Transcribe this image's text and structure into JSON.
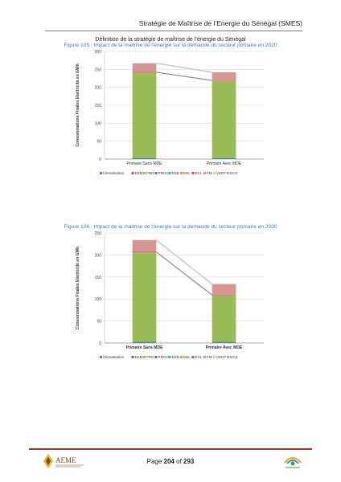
{
  "header": {
    "title": "Stratégie de Maîtrise de l’Energie du Sénégal (SMES)"
  },
  "section": {
    "title": "Définition de la stratégie de maîtrise de l’énergie du Sénégal"
  },
  "figures": [
    {
      "caption": "Figure 105 : Impact de la maitrise de l’énergie sur la demande du secteur primaire en 2020"
    },
    {
      "caption": "Figure 106 : Impact de la maitrise de l’énergie sur la demande du secteur primaire en 2030"
    }
  ],
  "chart_data": [
    {
      "type": "bar",
      "stacked": true,
      "categories": [
        "Primaire Sans MDE",
        "Primaire Avec MDE"
      ],
      "ylabel": "Consommations Finales Electricité en GWh",
      "ylim": [
        0,
        300
      ],
      "yticks": [
        0,
        50,
        100,
        150,
        200,
        250,
        300
      ],
      "grid": true,
      "legend_position": "bottom",
      "connectors": true,
      "series": [
        {
          "name": "Climatisation",
          "color": "#4f81bd",
          "values": [
            3,
            3
          ]
        },
        {
          "name": "EEM",
          "color": "#c0504d",
          "values": [
            0,
            0
          ]
        },
        {
          "name": "FRD",
          "color": "#9bbb59",
          "values": [
            239,
            216
          ]
        },
        {
          "name": "PROC",
          "color": "#8064a2",
          "values": [
            0,
            0
          ]
        },
        {
          "name": "EEB",
          "color": "#4bacc6",
          "values": [
            0,
            0
          ]
        },
        {
          "name": "EEL",
          "color": "#f79646",
          "values": [
            0,
            0
          ]
        },
        {
          "name": "ECL",
          "color": "#c0504d",
          "values": [
            1,
            1
          ]
        },
        {
          "name": "FM",
          "color": "#d99594",
          "values": [
            24,
            22
          ]
        },
        {
          "name": "VENT",
          "color": "#c3d69b",
          "values": [
            0,
            0
          ]
        },
        {
          "name": "ECS",
          "color": "#b2a1c7",
          "values": [
            0,
            0
          ]
        }
      ]
    },
    {
      "type": "bar",
      "stacked": true,
      "categories": [
        "Primaire Sans MDE",
        "Primaire Avec MDE"
      ],
      "ylabel": "Consommations Finales Electricité en GWh",
      "ylim": [
        0,
        250
      ],
      "yticks": [
        0,
        50,
        100,
        150,
        200,
        250
      ],
      "grid": true,
      "legend_position": "bottom",
      "connectors": true,
      "series": [
        {
          "name": "Climatisation",
          "color": "#4f81bd",
          "values": [
            3,
            3
          ]
        },
        {
          "name": "EEM",
          "color": "#c0504d",
          "values": [
            0,
            0
          ]
        },
        {
          "name": "FRD",
          "color": "#9bbb59",
          "values": [
            204,
            106
          ]
        },
        {
          "name": "PROC",
          "color": "#8064a2",
          "values": [
            0,
            0
          ]
        },
        {
          "name": "EEB",
          "color": "#4bacc6",
          "values": [
            0,
            0
          ]
        },
        {
          "name": "EEL",
          "color": "#f79646",
          "values": [
            0,
            0
          ]
        },
        {
          "name": "ECL",
          "color": "#c0504d",
          "values": [
            1,
            1
          ]
        },
        {
          "name": "FM",
          "color": "#d99594",
          "values": [
            26,
            24
          ]
        },
        {
          "name": "VENT",
          "color": "#c3d69b",
          "values": [
            0,
            0
          ]
        },
        {
          "name": "ECS",
          "color": "#b2a1c7",
          "values": [
            0,
            0
          ]
        }
      ]
    }
  ],
  "footer": {
    "page_label": "Page",
    "page_number": "204",
    "page_of": "of",
    "page_total": "293",
    "logo_text": "AEME"
  }
}
